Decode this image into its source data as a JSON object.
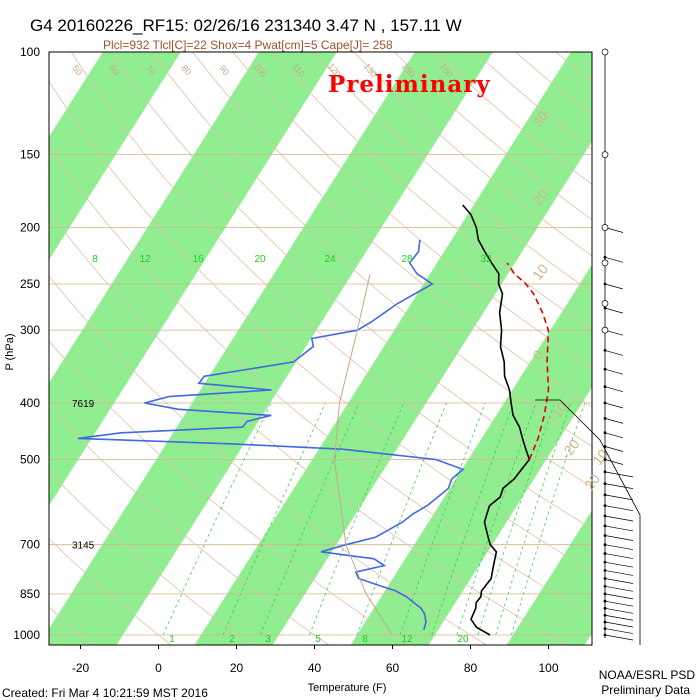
{
  "header": {
    "title": "G4 20160226_RF15: 02/26/16 231340    3.47 N , 157.11 W",
    "indices": "Plcl=932 Tlcl[C]=22 Shox=4 Pwat[cm]=5 Cape[J]= 258",
    "watermark": "Preliminary"
  },
  "footer": {
    "created": "Created: Fri Mar  4 10:21:59 MST 2016",
    "org": "NOAA/ESRL PSD",
    "status": "Preliminary Data"
  },
  "chart_data": {
    "type": "line",
    "diagram": "skew-T log-P",
    "title": "G4 20160226_RF15: 02/26/16 231340    3.47 N , 157.11 W",
    "xlabel": "Temperature (F)",
    "ylabel": "P (hPa)",
    "xlim": [
      -30,
      100
    ],
    "ylim_hpa": [
      1000,
      100
    ],
    "x_ticks": [
      "-20",
      "0",
      "20",
      "40",
      "60",
      "80",
      "100"
    ],
    "y_ticks": [
      "100",
      "150",
      "200",
      "250",
      "300",
      "400",
      "500",
      "700",
      "850",
      "1000"
    ],
    "isotherm_band_color": "#90ee90",
    "mixing_ratio_labels_upper": [
      "8",
      "12",
      "16",
      "20",
      "24",
      "28",
      "32"
    ],
    "mixing_ratio_labels_lower": [
      "1",
      "2",
      "3",
      "5",
      "8",
      "12",
      "20"
    ],
    "adiabat_labels": [
      "50",
      "60",
      "70",
      "80",
      "90",
      "100",
      "110",
      "120",
      "130",
      "150",
      "160"
    ],
    "wetbulb_labels": [
      "30",
      "20",
      "10",
      "0",
      "-10",
      "-20",
      "10",
      "20"
    ],
    "height_labels": [
      {
        "text": "7619",
        "p": 400
      },
      {
        "text": "3145",
        "p": 700
      }
    ],
    "series": [
      {
        "name": "Temperature",
        "color": "#000000",
        "points": [
          [
            1000,
            85
          ],
          [
            970,
            80
          ],
          [
            940,
            77
          ],
          [
            900,
            76
          ],
          [
            880,
            75
          ],
          [
            860,
            75
          ],
          [
            840,
            74
          ],
          [
            820,
            74
          ],
          [
            800,
            74
          ],
          [
            780,
            73
          ],
          [
            760,
            72
          ],
          [
            740,
            71
          ],
          [
            720,
            70
          ],
          [
            700,
            67
          ],
          [
            680,
            65
          ],
          [
            660,
            63
          ],
          [
            640,
            61
          ],
          [
            620,
            60
          ],
          [
            600,
            59
          ],
          [
            580,
            60
          ],
          [
            560,
            59
          ],
          [
            540,
            60
          ],
          [
            520,
            60
          ],
          [
            500,
            60
          ],
          [
            480,
            57
          ],
          [
            460,
            54
          ],
          [
            440,
            51
          ],
          [
            420,
            47
          ],
          [
            400,
            44
          ],
          [
            380,
            41
          ],
          [
            360,
            37
          ],
          [
            340,
            34
          ],
          [
            320,
            30
          ],
          [
            300,
            27
          ],
          [
            280,
            23
          ],
          [
            260,
            20
          ],
          [
            250,
            17
          ],
          [
            240,
            15
          ],
          [
            230,
            11
          ],
          [
            220,
            7
          ],
          [
            210,
            3
          ],
          [
            200,
            0
          ],
          [
            190,
            -4
          ],
          [
            183,
            -8
          ]
        ]
      },
      {
        "name": "Dewpoint",
        "color": "#4169e1",
        "points": [
          [
            980,
            67
          ],
          [
            950,
            66
          ],
          [
            920,
            64
          ],
          [
            900,
            62
          ],
          [
            880,
            59
          ],
          [
            860,
            56
          ],
          [
            840,
            52
          ],
          [
            820,
            46
          ],
          [
            800,
            40
          ],
          [
            780,
            38
          ],
          [
            760,
            44
          ],
          [
            740,
            40
          ],
          [
            720,
            25
          ],
          [
            700,
            30
          ],
          [
            680,
            36
          ],
          [
            660,
            38
          ],
          [
            640,
            40
          ],
          [
            620,
            41
          ],
          [
            600,
            43
          ],
          [
            580,
            44
          ],
          [
            560,
            45
          ],
          [
            540,
            44
          ],
          [
            520,
            45
          ],
          [
            500,
            36
          ],
          [
            480,
            10
          ],
          [
            470,
            -20
          ],
          [
            460,
            -60
          ],
          [
            450,
            -50
          ],
          [
            440,
            -20
          ],
          [
            430,
            -20
          ],
          [
            420,
            -15
          ],
          [
            410,
            -40
          ],
          [
            400,
            -50
          ],
          [
            390,
            -45
          ],
          [
            380,
            -20
          ],
          [
            370,
            -40
          ],
          [
            360,
            -40
          ],
          [
            340,
            -20
          ],
          [
            320,
            -18
          ],
          [
            310,
            -20
          ],
          [
            300,
            -10
          ],
          [
            290,
            -8
          ],
          [
            270,
            -5
          ],
          [
            250,
            0
          ],
          [
            240,
            -6
          ],
          [
            230,
            -10
          ],
          [
            220,
            -10
          ],
          [
            210,
            -12
          ]
        ]
      },
      {
        "name": "Parcel",
        "color": "#dd0000",
        "dashed": true,
        "points": [
          [
            500,
            60
          ],
          [
            460,
            58
          ],
          [
            420,
            55
          ],
          [
            380,
            51
          ],
          [
            340,
            45
          ],
          [
            300,
            39
          ],
          [
            280,
            34
          ],
          [
            260,
            28
          ],
          [
            250,
            24
          ],
          [
            240,
            19
          ],
          [
            230,
            15
          ]
        ]
      },
      {
        "name": "Reference line",
        "color": "#c8a78a",
        "points": [
          [
            1000,
            60
          ],
          [
            850,
            45
          ],
          [
            700,
            30
          ],
          [
            500,
            10
          ],
          [
            400,
            0
          ],
          [
            300,
            -10
          ],
          [
            240,
            -18
          ]
        ]
      }
    ],
    "wind_barbs_right_column": true
  }
}
